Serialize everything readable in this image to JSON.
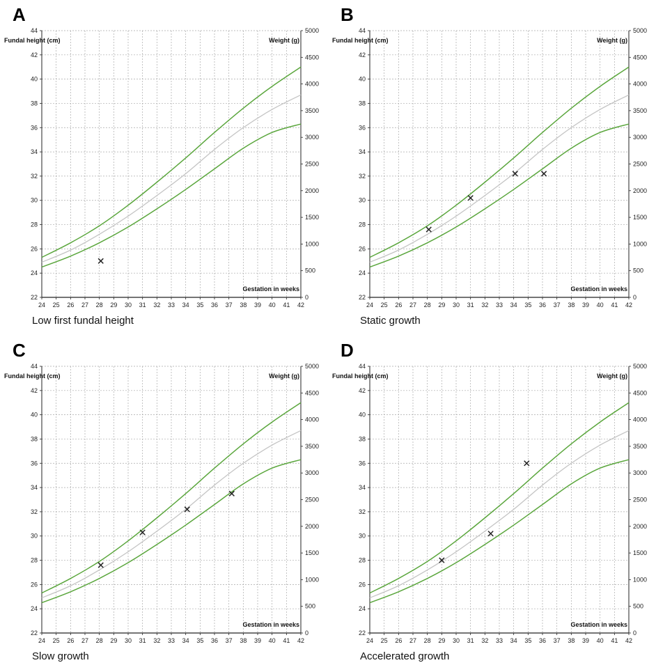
{
  "chart_data": [
    {
      "type": "line",
      "panel_letter": "A",
      "caption": "Low first fundal height",
      "ylabel": "Fundal height (cm)",
      "y2label": "Weight (g)",
      "xlabel": "Gestation in weeks",
      "x_ticks": [
        24,
        25,
        26,
        27,
        28,
        29,
        30,
        31,
        32,
        33,
        34,
        35,
        36,
        37,
        38,
        39,
        40,
        41,
        42
      ],
      "y_ticks": [
        22,
        24,
        26,
        28,
        30,
        32,
        34,
        36,
        38,
        40,
        42,
        44
      ],
      "y2_ticks": [
        0,
        500,
        1000,
        1500,
        2000,
        2500,
        3000,
        3500,
        4000,
        4500,
        5000
      ],
      "xlim": [
        24,
        42
      ],
      "ylim": [
        22,
        44
      ],
      "y2lim": [
        0,
        5000
      ],
      "grid": true,
      "series": [
        {
          "role": "upper",
          "color": "#5aa63c",
          "x": [
            24,
            26,
            28,
            30,
            32,
            34,
            36,
            38,
            40,
            42
          ],
          "y": [
            25.3,
            26.5,
            27.9,
            29.6,
            31.5,
            33.5,
            35.6,
            37.6,
            39.4,
            41.0
          ]
        },
        {
          "role": "median",
          "color": "#c4c4c4",
          "x": [
            24,
            26,
            28,
            30,
            32,
            34,
            36,
            38,
            40,
            42
          ],
          "y": [
            24.9,
            25.9,
            27.2,
            28.7,
            30.4,
            32.2,
            34.2,
            36.0,
            37.5,
            38.7
          ]
        },
        {
          "role": "lower",
          "color": "#5aa63c",
          "x": [
            24,
            26,
            28,
            30,
            32,
            34,
            36,
            38,
            40,
            42
          ],
          "y": [
            24.5,
            25.4,
            26.5,
            27.8,
            29.3,
            30.9,
            32.6,
            34.3,
            35.6,
            36.3
          ]
        }
      ],
      "markers": [
        {
          "x": 28.1,
          "y": 25.0
        }
      ]
    },
    {
      "type": "line",
      "panel_letter": "B",
      "caption": "Static growth",
      "ylabel": "Fundal height (cm)",
      "y2label": "Weight (g)",
      "xlabel": "Gestation in weeks",
      "x_ticks": [
        24,
        25,
        26,
        27,
        28,
        29,
        30,
        31,
        32,
        33,
        34,
        35,
        36,
        37,
        38,
        39,
        40,
        41,
        42
      ],
      "y_ticks": [
        22,
        24,
        26,
        28,
        30,
        32,
        34,
        36,
        38,
        40,
        42,
        44
      ],
      "y2_ticks": [
        0,
        500,
        1000,
        1500,
        2000,
        2500,
        3000,
        3500,
        4000,
        4500,
        5000
      ],
      "xlim": [
        24,
        42
      ],
      "ylim": [
        22,
        44
      ],
      "y2lim": [
        0,
        5000
      ],
      "grid": true,
      "series": [
        {
          "role": "upper",
          "color": "#5aa63c",
          "x": [
            24,
            26,
            28,
            30,
            32,
            34,
            36,
            38,
            40,
            42
          ],
          "y": [
            25.3,
            26.5,
            27.9,
            29.6,
            31.5,
            33.5,
            35.6,
            37.6,
            39.4,
            41.0
          ]
        },
        {
          "role": "median",
          "color": "#c4c4c4",
          "x": [
            24,
            26,
            28,
            30,
            32,
            34,
            36,
            38,
            40,
            42
          ],
          "y": [
            24.9,
            25.9,
            27.2,
            28.7,
            30.4,
            32.2,
            34.2,
            36.0,
            37.5,
            38.7
          ]
        },
        {
          "role": "lower",
          "color": "#5aa63c",
          "x": [
            24,
            26,
            28,
            30,
            32,
            34,
            36,
            38,
            40,
            42
          ],
          "y": [
            24.5,
            25.4,
            26.5,
            27.8,
            29.3,
            30.9,
            32.6,
            34.3,
            35.6,
            36.3
          ]
        }
      ],
      "markers": [
        {
          "x": 28.1,
          "y": 27.6
        },
        {
          "x": 31.0,
          "y": 30.2
        },
        {
          "x": 34.1,
          "y": 32.2
        },
        {
          "x": 36.1,
          "y": 32.2
        }
      ]
    },
    {
      "type": "line",
      "panel_letter": "C",
      "caption": "Slow growth",
      "ylabel": "Fundal height (cm)",
      "y2label": "Weight (g)",
      "xlabel": "Gestation in weeks",
      "x_ticks": [
        24,
        25,
        26,
        27,
        28,
        29,
        30,
        31,
        32,
        33,
        34,
        35,
        36,
        37,
        38,
        39,
        40,
        41,
        42
      ],
      "y_ticks": [
        22,
        24,
        26,
        28,
        30,
        32,
        34,
        36,
        38,
        40,
        42,
        44
      ],
      "y2_ticks": [
        0,
        500,
        1000,
        1500,
        2000,
        2500,
        3000,
        3500,
        4000,
        4500,
        5000
      ],
      "xlim": [
        24,
        42
      ],
      "ylim": [
        22,
        44
      ],
      "y2lim": [
        0,
        5000
      ],
      "grid": true,
      "series": [
        {
          "role": "upper",
          "color": "#5aa63c",
          "x": [
            24,
            26,
            28,
            30,
            32,
            34,
            36,
            38,
            40,
            42
          ],
          "y": [
            25.3,
            26.5,
            27.9,
            29.6,
            31.5,
            33.5,
            35.6,
            37.6,
            39.4,
            41.0
          ]
        },
        {
          "role": "median",
          "color": "#c4c4c4",
          "x": [
            24,
            26,
            28,
            30,
            32,
            34,
            36,
            38,
            40,
            42
          ],
          "y": [
            24.9,
            25.9,
            27.2,
            28.7,
            30.4,
            32.2,
            34.2,
            36.0,
            37.5,
            38.7
          ]
        },
        {
          "role": "lower",
          "color": "#5aa63c",
          "x": [
            24,
            26,
            28,
            30,
            32,
            34,
            36,
            38,
            40,
            42
          ],
          "y": [
            24.5,
            25.4,
            26.5,
            27.8,
            29.3,
            30.9,
            32.6,
            34.3,
            35.6,
            36.3
          ]
        }
      ],
      "markers": [
        {
          "x": 28.1,
          "y": 27.6
        },
        {
          "x": 31.0,
          "y": 30.3
        },
        {
          "x": 34.1,
          "y": 32.2
        },
        {
          "x": 37.2,
          "y": 33.5
        }
      ]
    },
    {
      "type": "line",
      "panel_letter": "D",
      "caption": "Accelerated growth",
      "ylabel": "Fundal height (cm)",
      "y2label": "Weight (g)",
      "xlabel": "Gestation in weeks",
      "x_ticks": [
        24,
        25,
        26,
        27,
        28,
        29,
        30,
        31,
        32,
        33,
        34,
        35,
        36,
        37,
        38,
        39,
        40,
        41,
        42
      ],
      "y_ticks": [
        22,
        24,
        26,
        28,
        30,
        32,
        34,
        36,
        38,
        40,
        42,
        44
      ],
      "y2_ticks": [
        0,
        500,
        1000,
        1500,
        2000,
        2500,
        3000,
        3500,
        4000,
        4500,
        5000
      ],
      "xlim": [
        24,
        42
      ],
      "ylim": [
        22,
        44
      ],
      "y2lim": [
        0,
        5000
      ],
      "grid": true,
      "series": [
        {
          "role": "upper",
          "color": "#5aa63c",
          "x": [
            24,
            26,
            28,
            30,
            32,
            34,
            36,
            38,
            40,
            42
          ],
          "y": [
            25.3,
            26.5,
            27.9,
            29.6,
            31.5,
            33.5,
            35.6,
            37.6,
            39.4,
            41.0
          ]
        },
        {
          "role": "median",
          "color": "#c4c4c4",
          "x": [
            24,
            26,
            28,
            30,
            32,
            34,
            36,
            38,
            40,
            42
          ],
          "y": [
            24.9,
            25.9,
            27.2,
            28.7,
            30.4,
            32.2,
            34.2,
            36.0,
            37.5,
            38.7
          ]
        },
        {
          "role": "lower",
          "color": "#5aa63c",
          "x": [
            24,
            26,
            28,
            30,
            32,
            34,
            36,
            38,
            40,
            42
          ],
          "y": [
            24.5,
            25.4,
            26.5,
            27.8,
            29.3,
            30.9,
            32.6,
            34.3,
            35.6,
            36.3
          ]
        }
      ],
      "markers": [
        {
          "x": 29.0,
          "y": 28.0
        },
        {
          "x": 32.4,
          "y": 30.2
        },
        {
          "x": 34.9,
          "y": 36.0
        }
      ]
    }
  ]
}
